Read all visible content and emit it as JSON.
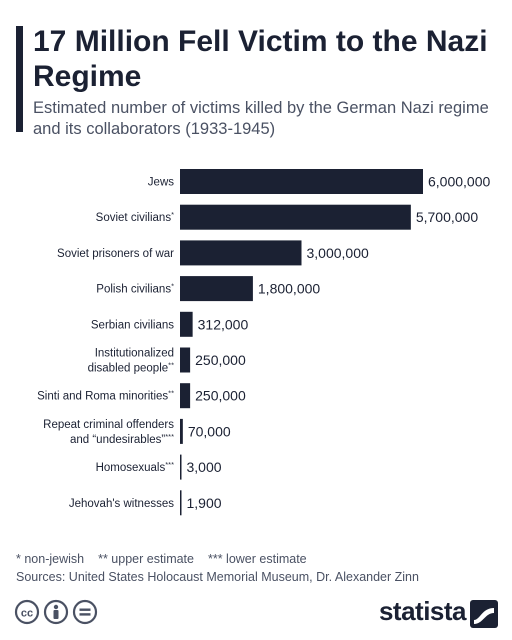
{
  "header": {
    "title": "17 Million Fell Victim to the Nazi Regime",
    "subtitle": "Estimated number of victims killed by the German Nazi regime and its collaborators (1933-1945)"
  },
  "chart_data": {
    "type": "bar",
    "orientation": "horizontal",
    "title": "17 Million Fell Victim to the Nazi Regime",
    "subtitle": "Estimated number of victims killed by the German Nazi regime and its collaborators (1933-1945)",
    "categories": [
      {
        "lines": [
          "Jews"
        ],
        "mark": ""
      },
      {
        "lines": [
          "Soviet civilians"
        ],
        "mark": "*"
      },
      {
        "lines": [
          "Soviet prisoners of war"
        ],
        "mark": ""
      },
      {
        "lines": [
          "Polish civilians"
        ],
        "mark": "*"
      },
      {
        "lines": [
          "Serbian civilians"
        ],
        "mark": ""
      },
      {
        "lines": [
          "Institutionalized",
          "disabled people"
        ],
        "mark": "**"
      },
      {
        "lines": [
          "Sinti and Roma minorities"
        ],
        "mark": "**"
      },
      {
        "lines": [
          "Repeat criminal offenders",
          "and “undesirables”"
        ],
        "mark": "***"
      },
      {
        "lines": [
          "Homosexuals"
        ],
        "mark": "***"
      },
      {
        "lines": [
          "Jehovah's witnesses"
        ],
        "mark": ""
      }
    ],
    "values": [
      6000000,
      5700000,
      3000000,
      1800000,
      312000,
      250000,
      250000,
      70000,
      3000,
      1900
    ],
    "value_labels": [
      "6,000,000",
      "5,700,000",
      "3,000,000",
      "1,800,000",
      "312,000",
      "250,000",
      "250,000",
      "70,000",
      "3,000",
      "1,900"
    ],
    "xlim": [
      0,
      6000000
    ],
    "grid": false,
    "legend": "none",
    "bar_color": "#1b2133"
  },
  "footnotes": {
    "marks": [
      "* non-jewish",
      "** upper estimate",
      "*** lower estimate"
    ],
    "sources": "Sources: United States Holocaust Memorial Museum, Dr. Alexander Zinn"
  },
  "brand": {
    "name": "statista"
  },
  "icons": [
    "cc-icon",
    "attribution-icon",
    "no-derivatives-icon",
    "statista-logo-icon"
  ],
  "colors": {
    "primary": "#1b2133",
    "text_secondary": "#4a5163",
    "background": "#ffffff"
  }
}
